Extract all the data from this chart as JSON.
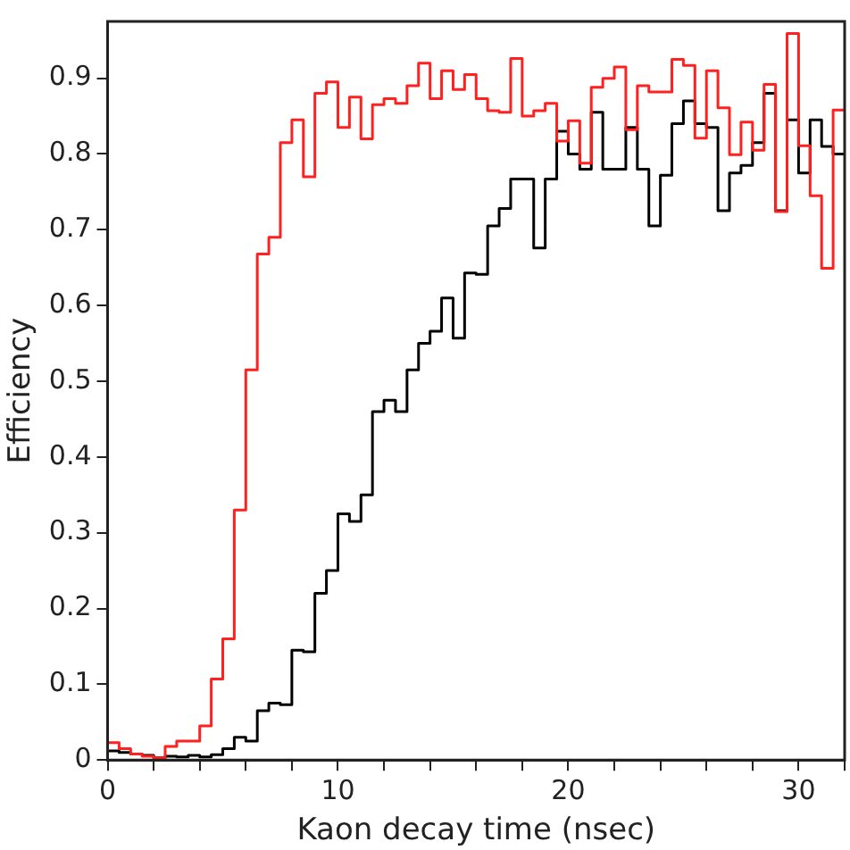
{
  "chart_data": {
    "type": "histogram",
    "xlabel": "Kaon decay time (nsec)",
    "ylabel": "Efficiency",
    "bins": [
      0,
      0.5,
      1,
      1.5,
      2,
      2.5,
      3,
      3.5,
      4,
      4.5,
      5,
      5.5,
      6,
      6.5,
      7,
      7.5,
      8,
      8.5,
      9,
      9.5,
      10,
      10.5,
      11,
      11.5,
      12,
      12.5,
      13,
      13.5,
      14,
      14.5,
      15,
      15.5,
      16,
      16.5,
      17,
      17.5,
      18,
      18.5,
      19,
      19.5,
      20,
      20.5,
      21,
      21.5,
      22,
      22.5,
      23,
      23.5,
      24,
      24.5,
      25,
      25.5,
      26,
      26.5,
      27,
      27.5,
      28,
      28.5,
      29,
      29.5,
      30,
      30.5,
      31,
      31.5,
      32
    ],
    "series": [
      {
        "color": "#ff2020",
        "values": [
          0.023,
          0.015,
          0.008,
          0.005,
          0.003,
          0.018,
          0.025,
          0.025,
          0.045,
          0.107,
          0.16,
          0.33,
          0.515,
          0.668,
          0.69,
          0.815,
          0.845,
          0.77,
          0.88,
          0.895,
          0.835,
          0.875,
          0.82,
          0.865,
          0.873,
          0.867,
          0.89,
          0.92,
          0.873,
          0.91,
          0.885,
          0.905,
          0.873,
          0.857,
          0.855,
          0.926,
          0.85,
          0.857,
          0.867,
          0.817,
          0.844,
          0.788,
          0.888,
          0.9,
          0.915,
          0.832,
          0.89,
          0.882,
          0.882,
          0.925,
          0.917,
          0.821,
          0.91,
          0.861,
          0.799,
          0.842,
          0.805,
          0.892,
          0.724,
          0.959,
          0.811,
          0.745,
          0.649,
          0.858
        ]
      },
      {
        "color": "#000000",
        "values": [
          0.012,
          0.01,
          0.008,
          0.006,
          0.003,
          0.005,
          0.004,
          0.006,
          0.004,
          0.007,
          0.015,
          0.03,
          0.025,
          0.065,
          0.075,
          0.073,
          0.145,
          0.143,
          0.22,
          0.25,
          0.325,
          0.315,
          0.35,
          0.46,
          0.475,
          0.46,
          0.515,
          0.55,
          0.566,
          0.61,
          0.557,
          0.643,
          0.641,
          0.705,
          0.728,
          0.767,
          0.767,
          0.676,
          0.767,
          0.83,
          0.8,
          0.78,
          0.855,
          0.78,
          0.78,
          0.835,
          0.78,
          0.705,
          0.772,
          0.84,
          0.87,
          0.84,
          0.835,
          0.725,
          0.775,
          0.785,
          0.815,
          0.88,
          0.725,
          0.845,
          0.775,
          0.845,
          0.81,
          0.8
        ]
      }
    ],
    "xlim": [
      0,
      32
    ],
    "ylim": [
      0,
      0.975
    ],
    "xticks": [
      0,
      {
        "value": 2,
        "label": null
      },
      {
        "value": 4,
        "label": null
      },
      {
        "value": 6,
        "label": null
      },
      {
        "value": 8,
        "label": null
      },
      10,
      {
        "value": 12,
        "label": null
      },
      {
        "value": 14,
        "label": null
      },
      {
        "value": 16,
        "label": null
      },
      {
        "value": 18,
        "label": null
      },
      20,
      {
        "value": 22,
        "label": null
      },
      {
        "value": 24,
        "label": null
      },
      {
        "value": 26,
        "label": null
      },
      {
        "value": 28,
        "label": null
      },
      30,
      {
        "value": 32,
        "label": null
      }
    ],
    "yticks": [
      0,
      0.1,
      0.2,
      0.3,
      0.4,
      0.5,
      0.6,
      0.7,
      0.8,
      0.9
    ],
    "grid": false,
    "legend": false
  }
}
